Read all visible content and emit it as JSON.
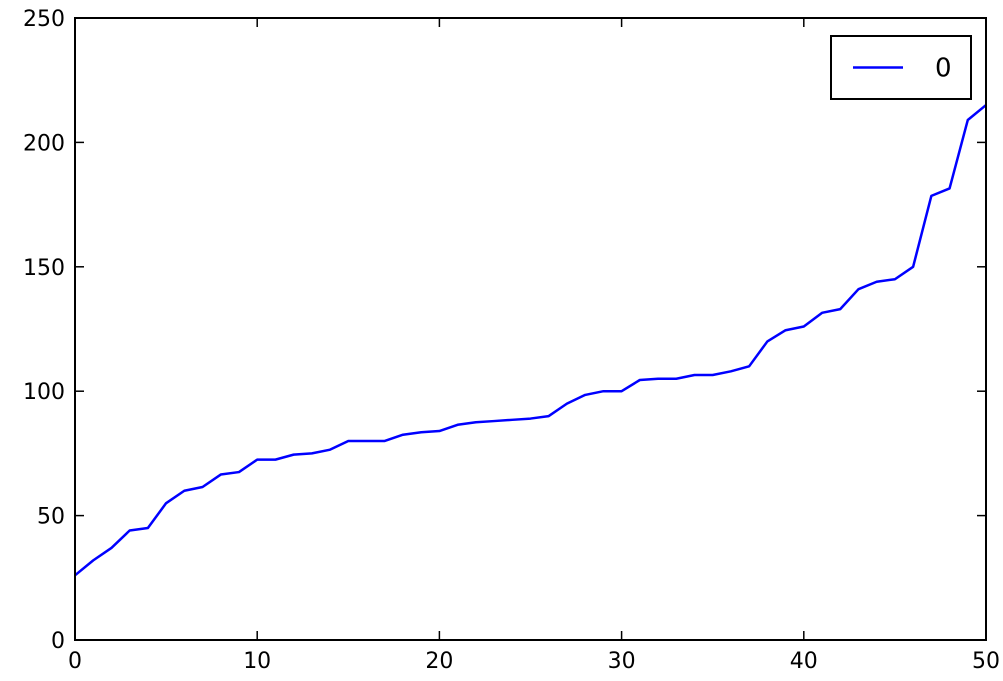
{
  "chart_data": {
    "type": "line",
    "title": "",
    "xlabel": "",
    "ylabel": "",
    "xlim": [
      0,
      50
    ],
    "ylim": [
      0,
      250
    ],
    "xticks": [
      "0",
      "10",
      "20",
      "30",
      "40",
      "50"
    ],
    "yticks": [
      "0",
      "50",
      "100",
      "150",
      "200",
      "250"
    ],
    "grid": false,
    "legend_position": "top-right",
    "series": [
      {
        "name": "0",
        "color": "#0000ff",
        "x": [
          0,
          1,
          2,
          3,
          4,
          5,
          6,
          7,
          8,
          9,
          10,
          11,
          12,
          13,
          14,
          15,
          16,
          17,
          18,
          19,
          20,
          21,
          22,
          23,
          24,
          25,
          26,
          27,
          28,
          29,
          30,
          31,
          32,
          33,
          34,
          35,
          36,
          37,
          38,
          39,
          40,
          41,
          42,
          43,
          44,
          45,
          46,
          47,
          48,
          49,
          50
        ],
        "values": [
          26,
          32,
          37,
          44,
          45,
          55,
          60,
          61.5,
          66.5,
          67.5,
          72.5,
          72.5,
          74.5,
          75,
          76.5,
          80,
          80,
          80,
          82.5,
          83.5,
          84,
          86.5,
          87.5,
          88,
          88.5,
          89,
          90,
          95,
          98.5,
          100,
          100,
          104.5,
          105,
          105,
          106.5,
          106.5,
          108,
          110,
          120,
          124.5,
          126,
          131.5,
          133,
          141,
          144,
          145,
          150,
          178.5,
          181.5,
          209,
          215
        ]
      }
    ]
  }
}
